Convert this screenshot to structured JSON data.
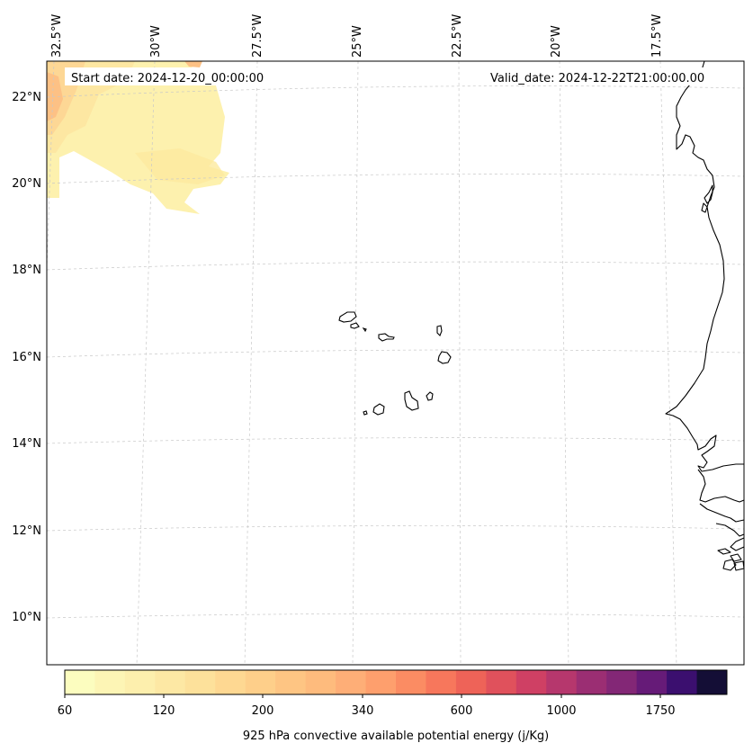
{
  "map": {
    "start_date": "Start date: 2024-12-20_00:00:00",
    "valid_date": "Valid_date: 2024-12-22T21:00:00.00",
    "lon_labels": [
      "32.5°W",
      "30°W",
      "27.5°W",
      "25°W",
      "22.5°W",
      "20°W",
      "17.5°W"
    ],
    "lat_labels": [
      "22°N",
      "20°N",
      "18°N",
      "16°N",
      "14°N",
      "12°N",
      "10°N"
    ],
    "region": "Cabo Verde and West African coast"
  },
  "colorbar": {
    "label": "925 hPa convective available potential energy (j/Kg)",
    "tick_labels": [
      "60",
      "120",
      "200",
      "340",
      "600",
      "1000",
      "1750"
    ],
    "colors": [
      "#fcfdbf",
      "#fdf5b5",
      "#fdefad",
      "#fde8a4",
      "#fde19b",
      "#fed892",
      "#fecf8a",
      "#fec583",
      "#febb7d",
      "#feae77",
      "#fe9f6d",
      "#fb8c63",
      "#f7775c",
      "#ee6358",
      "#e0515c",
      "#cf4064",
      "#b6376d",
      "#9b2e73",
      "#832776",
      "#661b78",
      "#3b0f6f",
      "#140e36"
    ]
  }
}
